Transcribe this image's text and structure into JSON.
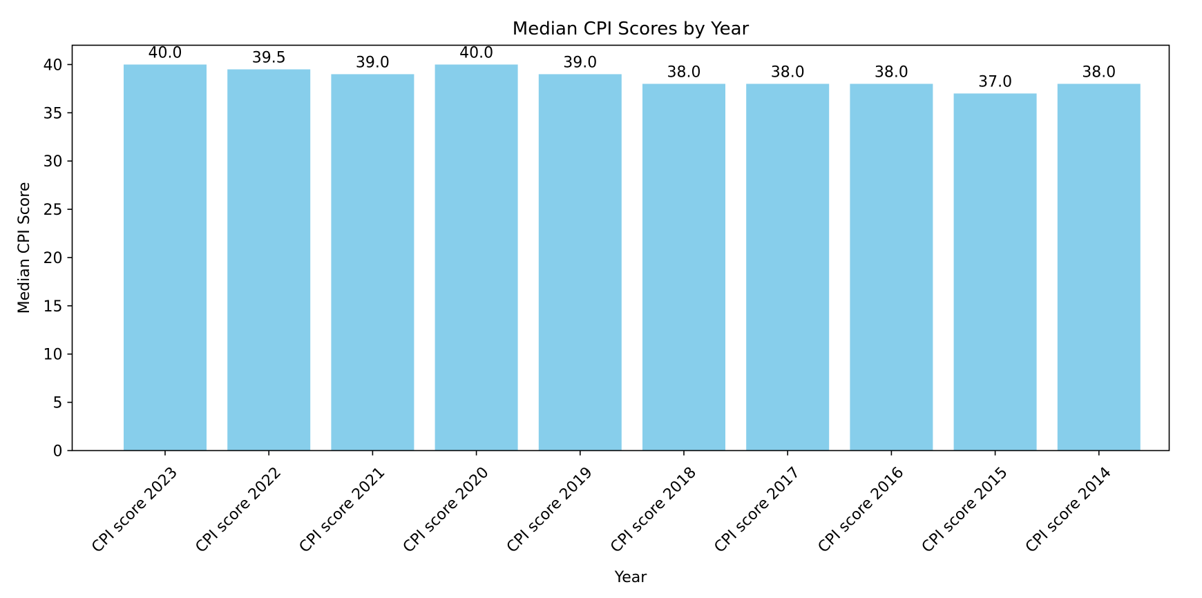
{
  "chart_data": {
    "type": "bar",
    "title": "Median CPI Scores by Year",
    "xlabel": "Year",
    "ylabel": "Median CPI Score",
    "categories": [
      "CPI score 2023",
      "CPI score 2022",
      "CPI score 2021",
      "CPI score 2020",
      "CPI score 2019",
      "CPI score 2018",
      "CPI score 2017",
      "CPI score 2016",
      "CPI score 2015",
      "CPI score 2014"
    ],
    "values": [
      40.0,
      39.5,
      39.0,
      40.0,
      39.0,
      38.0,
      38.0,
      38.0,
      37.0,
      38.0
    ],
    "data_labels": [
      "40.0",
      "39.5",
      "39.0",
      "40.0",
      "39.0",
      "38.0",
      "38.0",
      "38.0",
      "37.0",
      "38.0"
    ],
    "ylim": [
      0,
      42
    ],
    "yticks": [
      0,
      5,
      10,
      15,
      20,
      25,
      30,
      35,
      40
    ],
    "grid": false,
    "bar_color": "#87ceeb",
    "axis_color": "#000000"
  }
}
